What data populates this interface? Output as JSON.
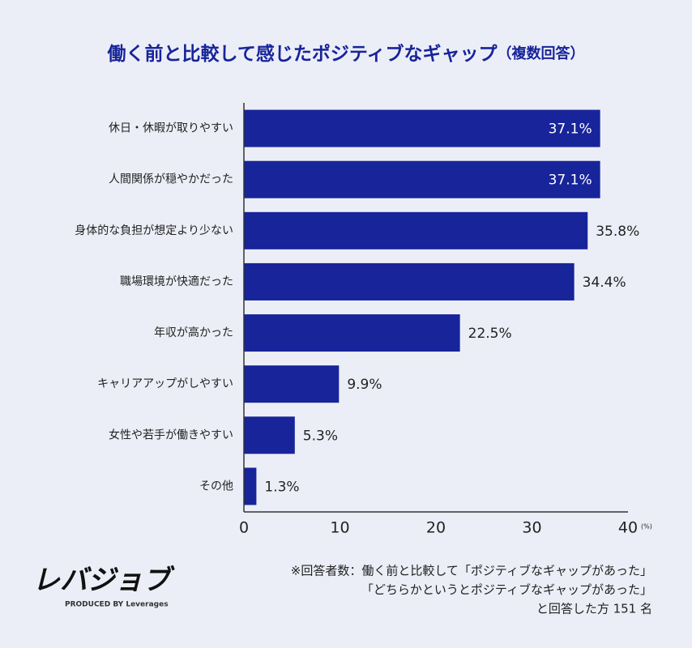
{
  "chart_data": {
    "type": "bar",
    "orientation": "horizontal",
    "title": "働く前と比較して感じたポジティブなギャップ",
    "title_note": "（複数回答）",
    "categories": [
      "休日・休暇が取りやすい",
      "人間関係が穏やかだった",
      "身体的な負担が想定より少ない",
      "職場環境が快適だった",
      "年収が高かった",
      "キャリアアップがしやすい",
      "女性や若手が働きやすい",
      "その他"
    ],
    "values": [
      37.1,
      37.1,
      35.8,
      34.4,
      22.5,
      9.9,
      5.3,
      1.3
    ],
    "value_labels": [
      "37.1%",
      "37.1%",
      "35.8%",
      "34.4%",
      "22.5%",
      "9.9%",
      "5.3%",
      "1.3%"
    ],
    "color": "#17249a",
    "xlim": [
      0,
      40
    ],
    "xticks": [
      0,
      10,
      20,
      30,
      40
    ],
    "x_unit": "(%)",
    "footnote": [
      "※回答者数：働く前と比較して「ポジティブなギャップがあった」",
      "「どちらかというとポジティブなギャップがあった」",
      "と回答した方 151 名"
    ],
    "logo": "レバジョブ",
    "logo_tagline": "PRODUCED BY Leverages"
  }
}
